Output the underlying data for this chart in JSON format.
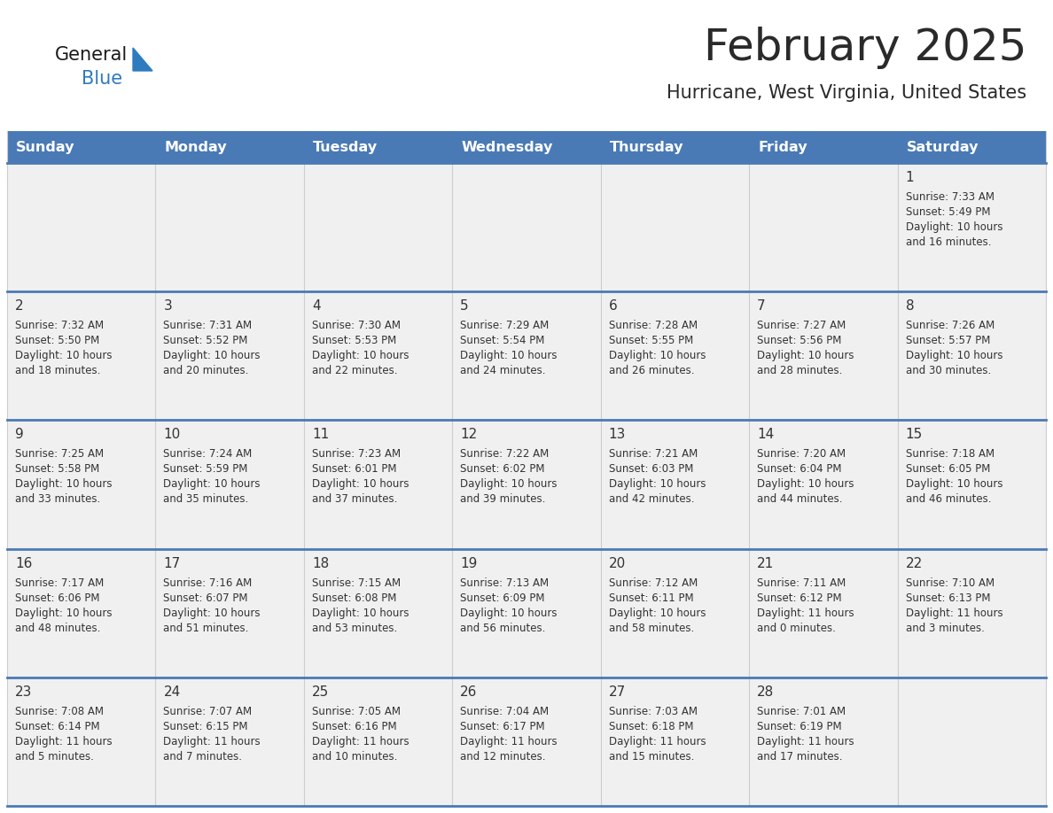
{
  "title": "February 2025",
  "subtitle": "Hurricane, West Virginia, United States",
  "header_color": "#4a7ab5",
  "header_text_color": "#ffffff",
  "cell_bg_color": "#f0f0f0",
  "day_number_color": "#333333",
  "text_color": "#333333",
  "line_color": "#4a7ab5",
  "days_of_week": [
    "Sunday",
    "Monday",
    "Tuesday",
    "Wednesday",
    "Thursday",
    "Friday",
    "Saturday"
  ],
  "logo_general_color": "#1a1a1a",
  "logo_blue_color": "#2e7bbf",
  "calendar_data": [
    [
      {
        "day": "",
        "sunrise": "",
        "sunset": "",
        "daylight": ""
      },
      {
        "day": "",
        "sunrise": "",
        "sunset": "",
        "daylight": ""
      },
      {
        "day": "",
        "sunrise": "",
        "sunset": "",
        "daylight": ""
      },
      {
        "day": "",
        "sunrise": "",
        "sunset": "",
        "daylight": ""
      },
      {
        "day": "",
        "sunrise": "",
        "sunset": "",
        "daylight": ""
      },
      {
        "day": "",
        "sunrise": "",
        "sunset": "",
        "daylight": ""
      },
      {
        "day": "1",
        "sunrise": "7:33 AM",
        "sunset": "5:49 PM",
        "daylight_h": "10 hours",
        "daylight_m": "and 16 minutes."
      }
    ],
    [
      {
        "day": "2",
        "sunrise": "7:32 AM",
        "sunset": "5:50 PM",
        "daylight_h": "10 hours",
        "daylight_m": "and 18 minutes."
      },
      {
        "day": "3",
        "sunrise": "7:31 AM",
        "sunset": "5:52 PM",
        "daylight_h": "10 hours",
        "daylight_m": "and 20 minutes."
      },
      {
        "day": "4",
        "sunrise": "7:30 AM",
        "sunset": "5:53 PM",
        "daylight_h": "10 hours",
        "daylight_m": "and 22 minutes."
      },
      {
        "day": "5",
        "sunrise": "7:29 AM",
        "sunset": "5:54 PM",
        "daylight_h": "10 hours",
        "daylight_m": "and 24 minutes."
      },
      {
        "day": "6",
        "sunrise": "7:28 AM",
        "sunset": "5:55 PM",
        "daylight_h": "10 hours",
        "daylight_m": "and 26 minutes."
      },
      {
        "day": "7",
        "sunrise": "7:27 AM",
        "sunset": "5:56 PM",
        "daylight_h": "10 hours",
        "daylight_m": "and 28 minutes."
      },
      {
        "day": "8",
        "sunrise": "7:26 AM",
        "sunset": "5:57 PM",
        "daylight_h": "10 hours",
        "daylight_m": "and 30 minutes."
      }
    ],
    [
      {
        "day": "9",
        "sunrise": "7:25 AM",
        "sunset": "5:58 PM",
        "daylight_h": "10 hours",
        "daylight_m": "and 33 minutes."
      },
      {
        "day": "10",
        "sunrise": "7:24 AM",
        "sunset": "5:59 PM",
        "daylight_h": "10 hours",
        "daylight_m": "and 35 minutes."
      },
      {
        "day": "11",
        "sunrise": "7:23 AM",
        "sunset": "6:01 PM",
        "daylight_h": "10 hours",
        "daylight_m": "and 37 minutes."
      },
      {
        "day": "12",
        "sunrise": "7:22 AM",
        "sunset": "6:02 PM",
        "daylight_h": "10 hours",
        "daylight_m": "and 39 minutes."
      },
      {
        "day": "13",
        "sunrise": "7:21 AM",
        "sunset": "6:03 PM",
        "daylight_h": "10 hours",
        "daylight_m": "and 42 minutes."
      },
      {
        "day": "14",
        "sunrise": "7:20 AM",
        "sunset": "6:04 PM",
        "daylight_h": "10 hours",
        "daylight_m": "and 44 minutes."
      },
      {
        "day": "15",
        "sunrise": "7:18 AM",
        "sunset": "6:05 PM",
        "daylight_h": "10 hours",
        "daylight_m": "and 46 minutes."
      }
    ],
    [
      {
        "day": "16",
        "sunrise": "7:17 AM",
        "sunset": "6:06 PM",
        "daylight_h": "10 hours",
        "daylight_m": "and 48 minutes."
      },
      {
        "day": "17",
        "sunrise": "7:16 AM",
        "sunset": "6:07 PM",
        "daylight_h": "10 hours",
        "daylight_m": "and 51 minutes."
      },
      {
        "day": "18",
        "sunrise": "7:15 AM",
        "sunset": "6:08 PM",
        "daylight_h": "10 hours",
        "daylight_m": "and 53 minutes."
      },
      {
        "day": "19",
        "sunrise": "7:13 AM",
        "sunset": "6:09 PM",
        "daylight_h": "10 hours",
        "daylight_m": "and 56 minutes."
      },
      {
        "day": "20",
        "sunrise": "7:12 AM",
        "sunset": "6:11 PM",
        "daylight_h": "10 hours",
        "daylight_m": "and 58 minutes."
      },
      {
        "day": "21",
        "sunrise": "7:11 AM",
        "sunset": "6:12 PM",
        "daylight_h": "11 hours",
        "daylight_m": "and 0 minutes."
      },
      {
        "day": "22",
        "sunrise": "7:10 AM",
        "sunset": "6:13 PM",
        "daylight_h": "11 hours",
        "daylight_m": "and 3 minutes."
      }
    ],
    [
      {
        "day": "23",
        "sunrise": "7:08 AM",
        "sunset": "6:14 PM",
        "daylight_h": "11 hours",
        "daylight_m": "and 5 minutes."
      },
      {
        "day": "24",
        "sunrise": "7:07 AM",
        "sunset": "6:15 PM",
        "daylight_h": "11 hours",
        "daylight_m": "and 7 minutes."
      },
      {
        "day": "25",
        "sunrise": "7:05 AM",
        "sunset": "6:16 PM",
        "daylight_h": "11 hours",
        "daylight_m": "and 10 minutes."
      },
      {
        "day": "26",
        "sunrise": "7:04 AM",
        "sunset": "6:17 PM",
        "daylight_h": "11 hours",
        "daylight_m": "and 12 minutes."
      },
      {
        "day": "27",
        "sunrise": "7:03 AM",
        "sunset": "6:18 PM",
        "daylight_h": "11 hours",
        "daylight_m": "and 15 minutes."
      },
      {
        "day": "28",
        "sunrise": "7:01 AM",
        "sunset": "6:19 PM",
        "daylight_h": "11 hours",
        "daylight_m": "and 17 minutes."
      },
      {
        "day": "",
        "sunrise": "",
        "sunset": "",
        "daylight_h": "",
        "daylight_m": ""
      }
    ]
  ]
}
